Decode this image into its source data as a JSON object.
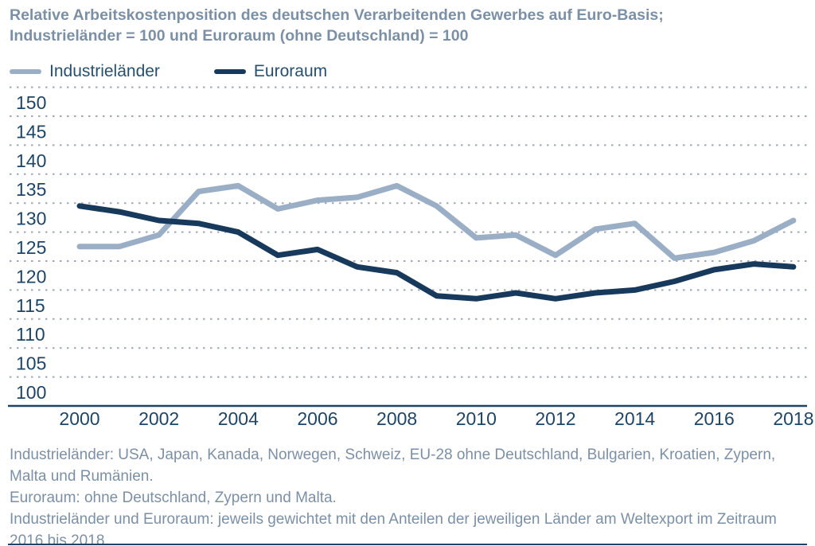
{
  "title": {
    "line1": "Relative Arbeitskostenposition des deutschen Verarbeitenden Gewerbes auf Euro-Basis;",
    "line2": "Industrieländer = 100 und Euroraum (ohne Deutschland) = 100"
  },
  "legend": [
    {
      "label": "Industrieländer",
      "color": "#9aaec5"
    },
    {
      "label": "Euroraum",
      "color": "#17395c"
    }
  ],
  "footnotes": [
    "Industrieländer: USA, Japan, Kanada, Norwegen, Schweiz, EU-28 ohne Deutschland, Bulgarien, Kroatien, Zypern, Malta und Rumänien.",
    "Euroraum: ohne Deutschland, Zypern und Malta.",
    "Industrieländer und Euroraum: jeweils gewichtet mit den Anteilen der jeweiligen Länder am Weltexport im Zeitraum 2016 bis 2018."
  ],
  "colors": {
    "title_text": "#7c90a5",
    "tick_text": "#1e4566",
    "legend_text": "#27506f",
    "gridline": "#9fa9b4",
    "baseline": "#1e4566",
    "series_industrielaender": "#9aaec5",
    "series_euroraum": "#17395c"
  },
  "chart_data": {
    "type": "line",
    "title": "Relative Arbeitskostenposition des deutschen Verarbeitenden Gewerbes auf Euro-Basis; Industrieländer = 100 und Euroraum (ohne Deutschland) = 100",
    "x": [
      2000,
      2001,
      2002,
      2003,
      2004,
      2005,
      2006,
      2007,
      2008,
      2009,
      2010,
      2011,
      2012,
      2013,
      2014,
      2015,
      2016,
      2017,
      2018
    ],
    "series": [
      {
        "name": "Industrieländer",
        "color": "#9aaec5",
        "values": [
          127.5,
          127.5,
          129.5,
          137,
          138,
          134,
          135.5,
          136,
          138,
          134.5,
          129,
          129.5,
          126,
          130.5,
          131.5,
          125.5,
          126.5,
          128.5,
          132
        ]
      },
      {
        "name": "Euroraum",
        "color": "#17395c",
        "values": [
          134.5,
          133.5,
          132,
          131.5,
          130,
          126,
          127,
          124,
          123,
          119,
          118.5,
          119.5,
          118.5,
          119.5,
          120,
          121.5,
          123.5,
          124.5,
          124
        ]
      }
    ],
    "xticks": [
      2000,
      2002,
      2004,
      2006,
      2008,
      2010,
      2012,
      2014,
      2016,
      2018
    ],
    "yticks_labeled": [
      100,
      105,
      110,
      115,
      120,
      125,
      130,
      135,
      140,
      145,
      150
    ],
    "ylim": [
      100,
      155
    ],
    "baseline_value": 100,
    "grid": "horizontal-dotted",
    "legend_position": "top-left",
    "xlabel": "",
    "ylabel": ""
  }
}
